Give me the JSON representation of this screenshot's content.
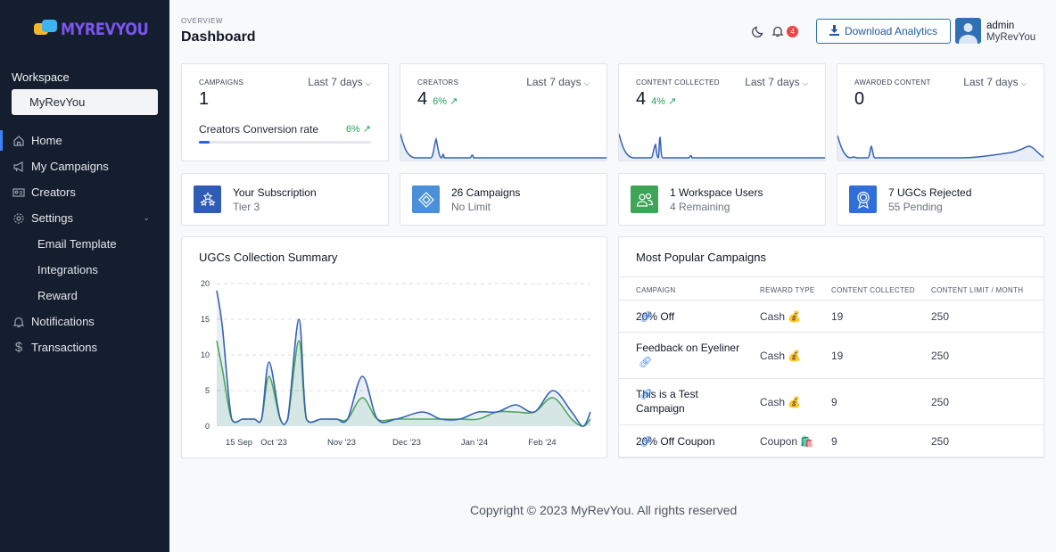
{
  "sidebar": {
    "logo_text": "MYREVYOU",
    "workspace_label": "Workspace",
    "workspace_value": "MyRevYou",
    "nav": [
      {
        "label": "Home",
        "icon": "home-icon"
      },
      {
        "label": "My Campaigns",
        "icon": "megaphone-icon"
      },
      {
        "label": "Creators",
        "icon": "id-card-icon"
      },
      {
        "label": "Settings",
        "icon": "gear-icon"
      },
      {
        "label": "Email Template"
      },
      {
        "label": "Integrations"
      },
      {
        "label": "Reward"
      },
      {
        "label": "Notifications",
        "icon": "bell-icon"
      },
      {
        "label": "Transactions",
        "icon": "dollar-icon"
      }
    ]
  },
  "header": {
    "overview": "OVERVIEW",
    "title": "Dashboard",
    "notification_count": "4",
    "download_label": "Download Analytics",
    "user_name": "admin",
    "user_workspace": "MyRevYou"
  },
  "stats": [
    {
      "label": "CAMPAIGNS",
      "range": "Last 7 days",
      "value": "1",
      "conversion_label": "Creators Conversion rate",
      "conversion_value": "6%",
      "conversion_fraction": 0.06
    },
    {
      "label": "CREATORS",
      "range": "Last 7 days",
      "value": "4",
      "delta": "6%"
    },
    {
      "label": "CONTENT COLLECTED",
      "range": "Last 7 days",
      "value": "4",
      "delta": "4%"
    },
    {
      "label": "AWARDED CONTENT",
      "range": "Last 7 days",
      "value": "0"
    }
  ],
  "info_cards": [
    {
      "title": "Your Subscription",
      "sub": "Tier 3",
      "color": "#2f5db5",
      "icon": "stars-icon"
    },
    {
      "title": "26 Campaigns",
      "sub": "No Limit",
      "color": "#4a90d9",
      "icon": "diamond-icon"
    },
    {
      "title": "1 Workspace Users",
      "sub": "4 Remaining",
      "color": "#3fa556",
      "icon": "users-icon"
    },
    {
      "title": "7 UGCs Rejected",
      "sub": "55 Pending",
      "color": "#2f6fd6",
      "icon": "award-icon"
    }
  ],
  "ugc_chart": {
    "title": "UGCs Collection Summary"
  },
  "chart_data": {
    "type": "area",
    "title": "UGCs Collection Summary",
    "xlabel": "",
    "ylabel": "",
    "ylim": [
      0,
      20
    ],
    "yticks": [
      "0",
      "5",
      "10",
      "15",
      "20"
    ],
    "xticks": [
      "15 Sep",
      "Oct '23",
      "Nov '23",
      "Dec '23",
      "Jan '24",
      "Feb '24"
    ],
    "x": [
      0,
      3,
      8,
      14,
      20,
      24,
      28,
      34,
      38,
      44,
      48,
      56,
      64,
      70,
      78,
      86,
      96,
      110,
      120,
      130,
      140,
      150,
      160,
      170,
      180,
      190,
      196,
      200
    ],
    "series": [
      {
        "values": [
          19,
          14,
          1,
          1,
          1,
          1,
          9,
          1,
          1,
          15,
          1,
          1,
          1,
          1,
          7,
          1,
          1,
          2,
          1,
          1,
          2,
          2,
          3,
          2,
          5,
          2,
          0,
          2
        ]
      },
      {
        "values": [
          12,
          8,
          1,
          1,
          1,
          1,
          7,
          1,
          1,
          12,
          1,
          1,
          1,
          1,
          4,
          1,
          1,
          1,
          1,
          1,
          1,
          2,
          2,
          2,
          4,
          1,
          0,
          1
        ]
      }
    ],
    "colors": [
      "#3562b5",
      "#4aa85a"
    ],
    "grid": true
  },
  "popular": {
    "title": "Most Popular Campaigns",
    "headers": [
      "CAMPAIGN",
      "REWARD TYPE",
      "CONTENT COLLECTED",
      "CONTENT LIMIT / MONTH"
    ],
    "rows": [
      {
        "campaign": "20% Off",
        "reward": "Cash 💰",
        "collected": "19",
        "limit": "250"
      },
      {
        "campaign": "Feedback on Eyeliner",
        "reward": "Cash 💰",
        "collected": "19",
        "limit": "250"
      },
      {
        "campaign": "This is a Test Campaign",
        "reward": "Cash 💰",
        "collected": "9",
        "limit": "250"
      },
      {
        "campaign": "20% Off Coupon",
        "reward": "Coupon 🛍️",
        "collected": "9",
        "limit": "250"
      }
    ]
  },
  "footer": "Copyright © 2023 MyRevYou. All rights reserved"
}
